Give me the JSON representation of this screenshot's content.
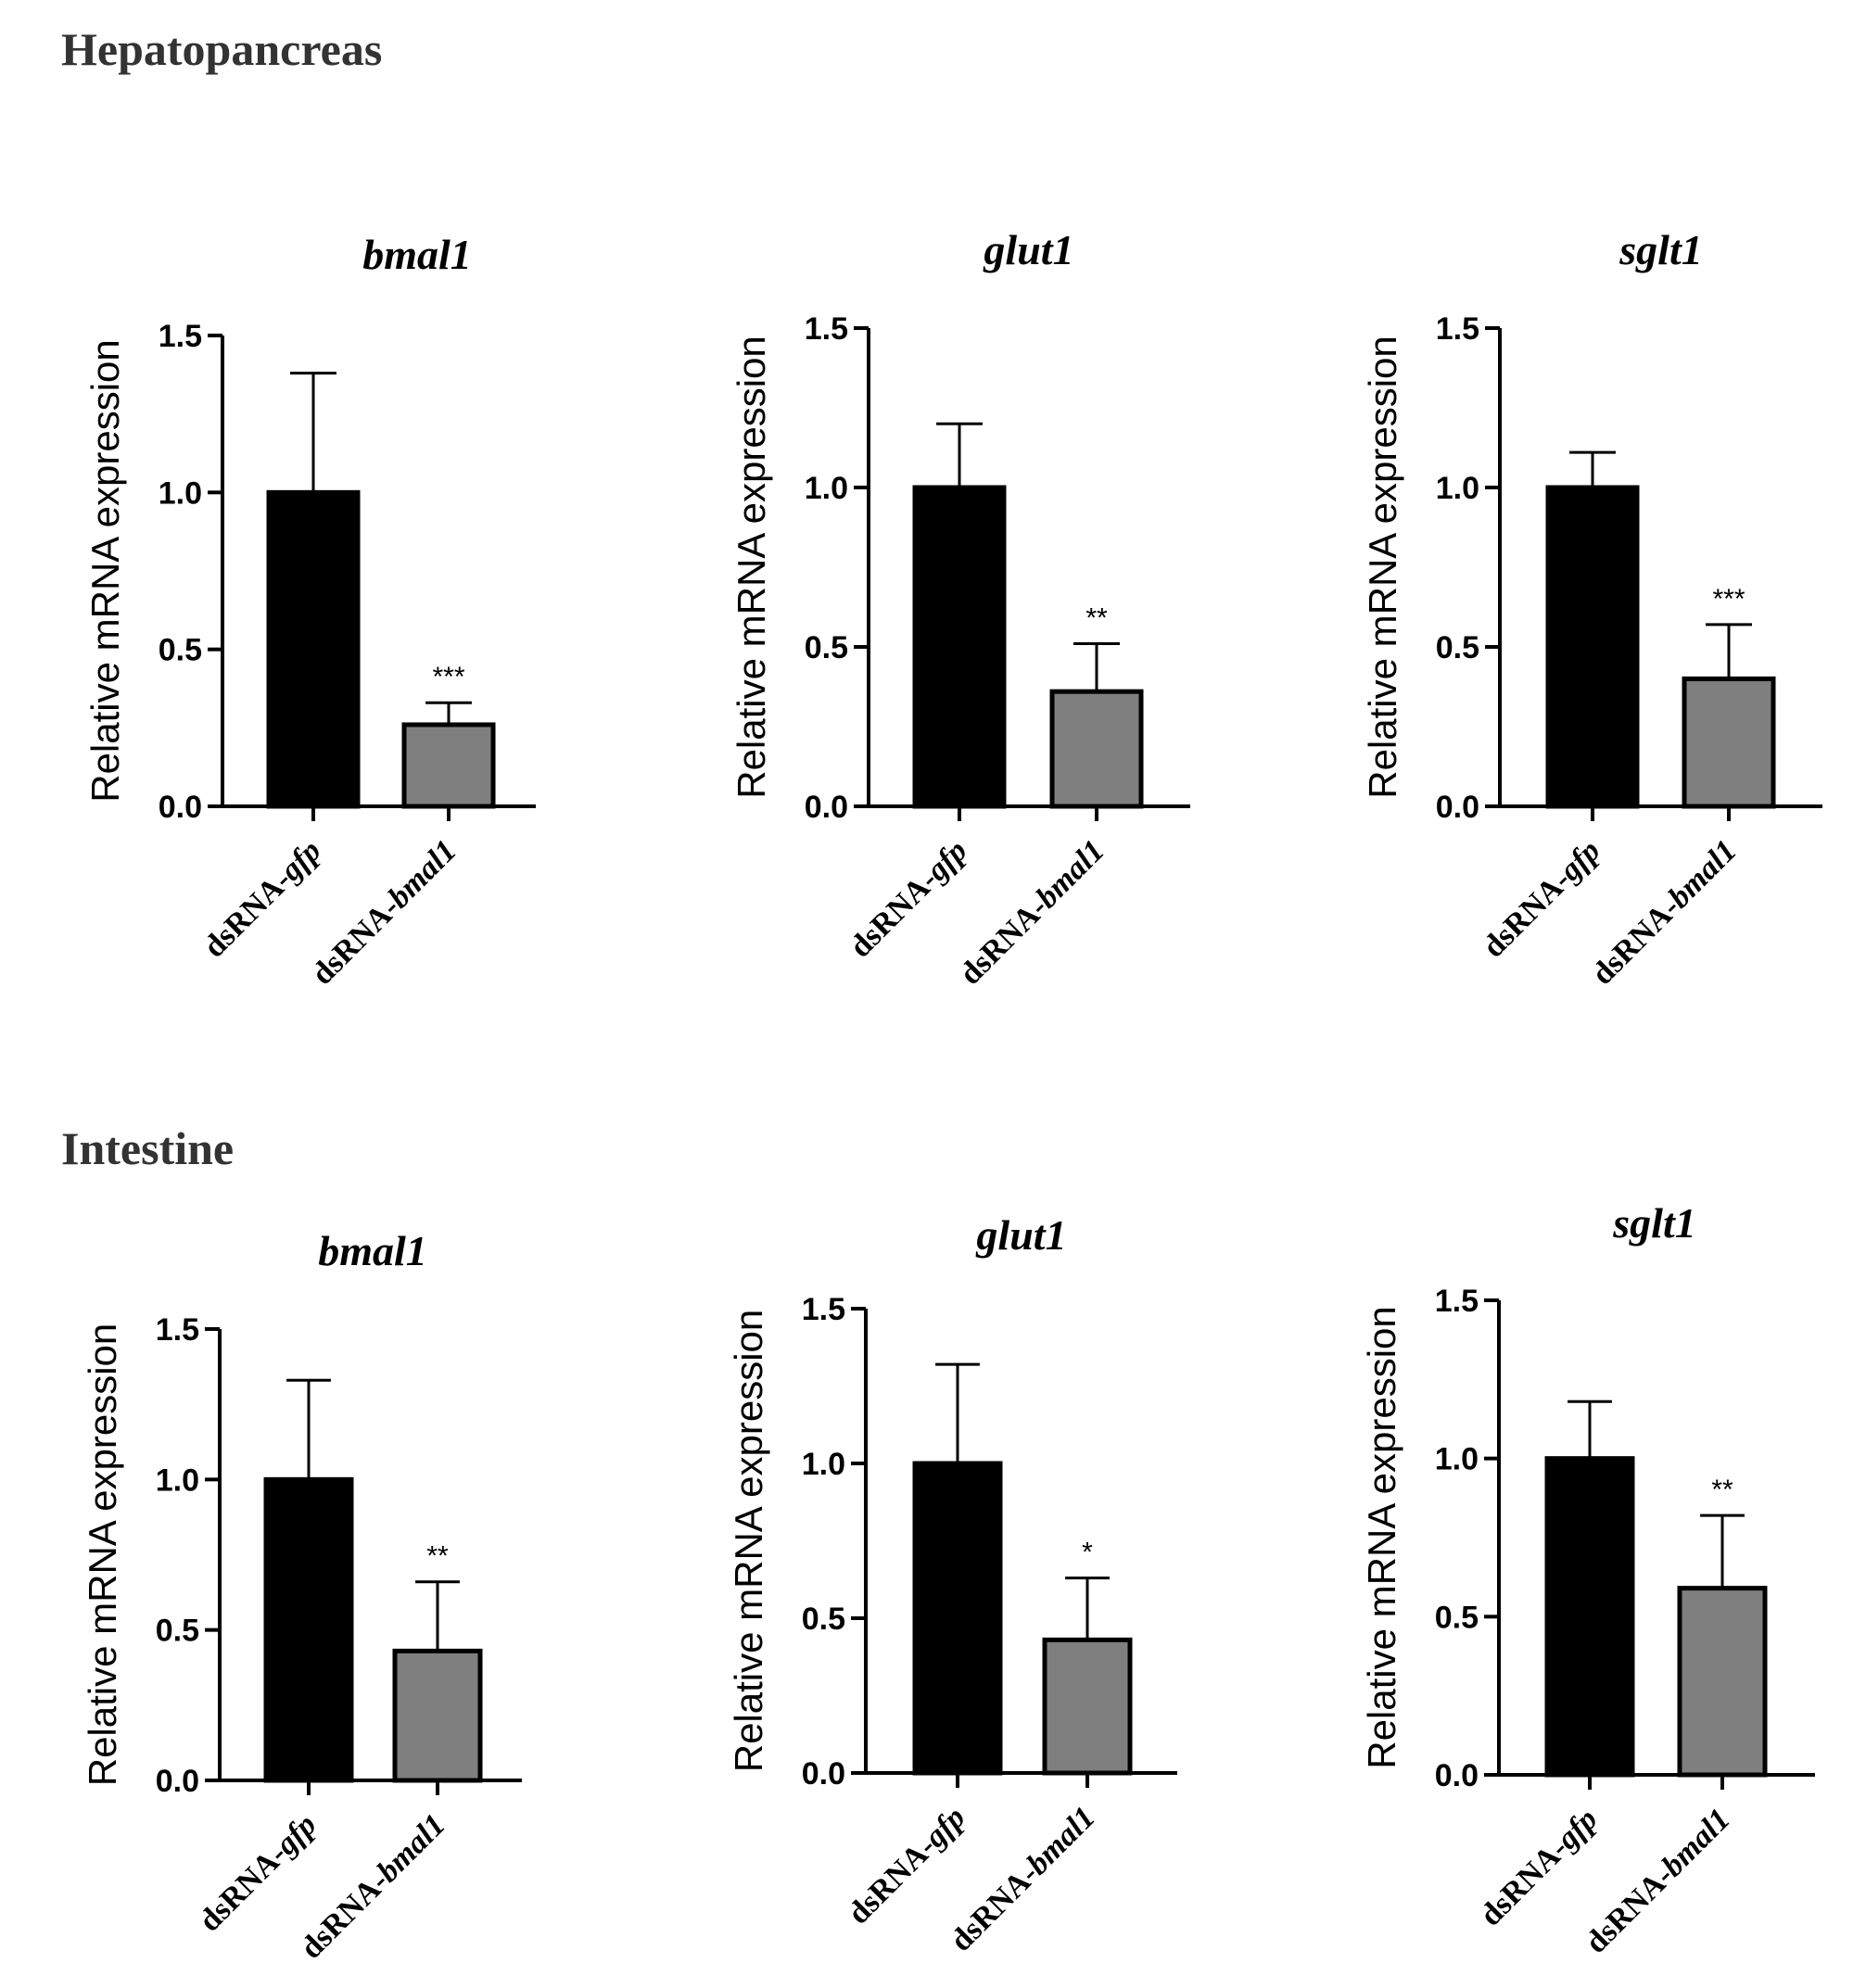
{
  "sections": [
    {
      "title": "Hepatopancreas"
    },
    {
      "title": "Intestine"
    }
  ],
  "colors": {
    "control_bar": "#000000",
    "treatment_bar": "#7f7f7f",
    "axis": "#000000"
  },
  "chart_data": [
    {
      "panel": "Hepatopancreas",
      "type": "bar",
      "title": "bmal1",
      "categories": [
        {
          "prefix": "dsRNA-",
          "gene": "gfp"
        },
        {
          "prefix": "dsRNA-",
          "gene": "bmal1"
        }
      ],
      "values": [
        1.0,
        0.26
      ],
      "error": [
        0.38,
        0.07
      ],
      "significance": [
        "",
        "***"
      ],
      "ylabel": "Relative mRNA expression",
      "ylim": [
        0,
        1.5
      ],
      "yticks": [
        {
          "value": 0,
          "label": "0.0"
        },
        {
          "value": 0.5,
          "label": "0.5"
        },
        {
          "value": 1.0,
          "label": "1.0"
        },
        {
          "value": 1.5,
          "label": "1.5"
        }
      ]
    },
    {
      "panel": "Hepatopancreas",
      "type": "bar",
      "title": "glut1",
      "categories": [
        {
          "prefix": "dsRNA-",
          "gene": "gfp"
        },
        {
          "prefix": "dsRNA-",
          "gene": "bmal1"
        }
      ],
      "values": [
        1.0,
        0.36
      ],
      "error": [
        0.2,
        0.15
      ],
      "significance": [
        "",
        "**"
      ],
      "ylabel": "Relative mRNA expression",
      "ylim": [
        0,
        1.5
      ],
      "yticks": [
        {
          "value": 0,
          "label": "0.0"
        },
        {
          "value": 0.5,
          "label": "0.5"
        },
        {
          "value": 1.0,
          "label": "1.0"
        },
        {
          "value": 1.5,
          "label": "1.5"
        }
      ]
    },
    {
      "panel": "Hepatopancreas",
      "type": "bar",
      "title": "sglt1",
      "categories": [
        {
          "prefix": "dsRNA-",
          "gene": "gfp"
        },
        {
          "prefix": "dsRNA-",
          "gene": "bmal1"
        }
      ],
      "values": [
        1.0,
        0.4
      ],
      "error": [
        0.11,
        0.17
      ],
      "significance": [
        "",
        "***"
      ],
      "ylabel": "Relative mRNA expression",
      "ylim": [
        0,
        1.5
      ],
      "yticks": [
        {
          "value": 0,
          "label": "0.0"
        },
        {
          "value": 0.5,
          "label": "0.5"
        },
        {
          "value": 1.0,
          "label": "1.0"
        },
        {
          "value": 1.5,
          "label": "1.5"
        }
      ]
    },
    {
      "panel": "Intestine",
      "type": "bar",
      "title": "bmal1",
      "categories": [
        {
          "prefix": "dsRNA-",
          "gene": "gfp"
        },
        {
          "prefix": "dsRNA-",
          "gene": "bmal1"
        }
      ],
      "values": [
        1.0,
        0.43
      ],
      "error": [
        0.33,
        0.23
      ],
      "significance": [
        "",
        "**"
      ],
      "ylabel": "Relative mRNA expression",
      "ylim": [
        0,
        1.5
      ],
      "yticks": [
        {
          "value": 0,
          "label": "0.0"
        },
        {
          "value": 0.5,
          "label": "0.5"
        },
        {
          "value": 1.0,
          "label": "1.0"
        },
        {
          "value": 1.5,
          "label": "1.5"
        }
      ]
    },
    {
      "panel": "Intestine",
      "type": "bar",
      "title": "glut1",
      "categories": [
        {
          "prefix": "dsRNA-",
          "gene": "gfp"
        },
        {
          "prefix": "dsRNA-",
          "gene": "bmal1"
        }
      ],
      "values": [
        1.0,
        0.43
      ],
      "error": [
        0.32,
        0.2
      ],
      "significance": [
        "",
        "*"
      ],
      "ylabel": "Relative mRNA expression",
      "ylim": [
        0,
        1.5
      ],
      "yticks": [
        {
          "value": 0,
          "label": "0.0"
        },
        {
          "value": 0.5,
          "label": "0.5"
        },
        {
          "value": 1.0,
          "label": "1.0"
        },
        {
          "value": 1.5,
          "label": "1.5"
        }
      ]
    },
    {
      "panel": "Intestine",
      "type": "bar",
      "title": "sglt1",
      "categories": [
        {
          "prefix": "dsRNA-",
          "gene": "gfp"
        },
        {
          "prefix": "dsRNA-",
          "gene": "bmal1"
        }
      ],
      "values": [
        1.0,
        0.59
      ],
      "error": [
        0.18,
        0.23
      ],
      "significance": [
        "",
        "**"
      ],
      "ylabel": "Relative mRNA expression",
      "ylim": [
        0,
        1.5
      ],
      "yticks": [
        {
          "value": 0,
          "label": "0.0"
        },
        {
          "value": 0.5,
          "label": "0.5"
        },
        {
          "value": 1.0,
          "label": "1.0"
        },
        {
          "value": 1.5,
          "label": "1.5"
        }
      ]
    }
  ]
}
